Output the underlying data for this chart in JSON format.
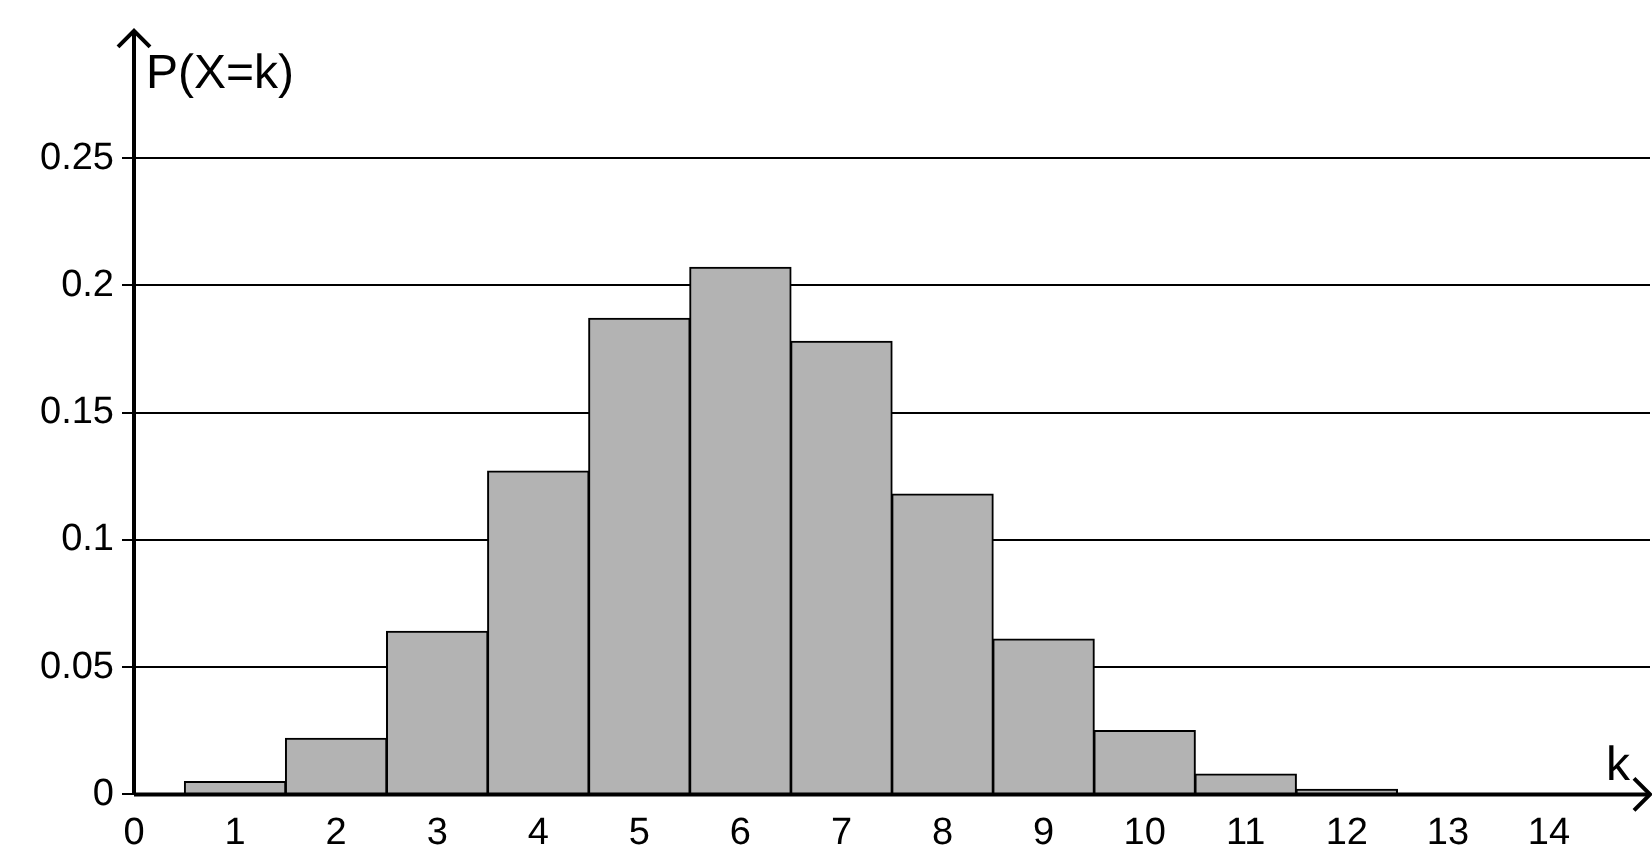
{
  "chart_data": {
    "type": "histogram",
    "xlabel": "k",
    "ylabel": "P(X=k)",
    "bins": [
      0.5,
      1.5,
      2.5,
      3.5,
      4.5,
      5.5,
      6.5,
      7.5,
      8.5,
      9.5,
      10.5,
      11.5,
      12.5,
      13.5,
      14.5
    ],
    "values": [
      0.005,
      0.022,
      0.064,
      0.127,
      0.187,
      0.207,
      0.178,
      0.118,
      0.061,
      0.025,
      0.008,
      0.002,
      null,
      null
    ],
    "color": "#b3b3b3",
    "xlim": [
      0,
      15
    ],
    "xticks": [
      0,
      1,
      2,
      3,
      4,
      5,
      6,
      7,
      8,
      9,
      10,
      11,
      12,
      13,
      14
    ],
    "ylim": [
      0,
      0.3
    ],
    "yticks": [
      0,
      0.05,
      0.1,
      0.15,
      0.2,
      0.25
    ],
    "grid": "y",
    "legend": false
  }
}
